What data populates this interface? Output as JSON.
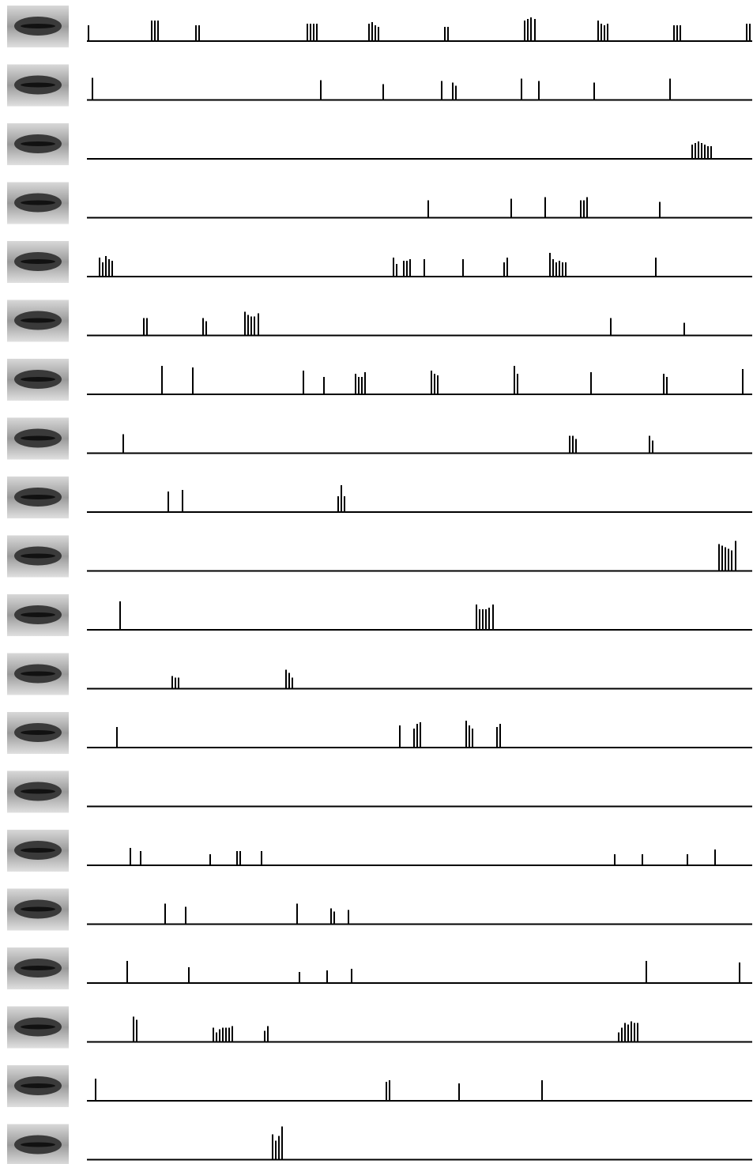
{
  "chart_data": [
    {
      "type": "spike",
      "xlim": [
        0,
        842
      ],
      "ylim": [
        0,
        45
      ],
      "color": "#000000",
      "x": [
        2,
        82,
        86,
        90,
        138,
        142,
        279,
        283,
        287,
        291,
        357,
        361,
        365,
        369,
        453,
        457,
        554,
        558,
        562,
        567,
        647,
        651,
        655,
        659,
        743,
        747,
        751,
        835,
        839
      ],
      "values": [
        20,
        26,
        26,
        26,
        20,
        20,
        22,
        22,
        22,
        22,
        22,
        24,
        20,
        18,
        18,
        18,
        26,
        28,
        30,
        28,
        26,
        22,
        20,
        22,
        20,
        20,
        20,
        22,
        22
      ]
    },
    {
      "type": "spike",
      "xlim": [
        0,
        842
      ],
      "ylim": [
        0,
        45
      ],
      "color": "#000000",
      "x": [
        7,
        296,
        375,
        449,
        463,
        467,
        550,
        572,
        642,
        738
      ],
      "values": [
        28,
        25,
        20,
        24,
        22,
        18,
        27,
        24,
        22,
        27
      ]
    },
    {
      "type": "spike",
      "xlim": [
        0,
        842
      ],
      "ylim": [
        0,
        45
      ],
      "color": "#000000",
      "x": [
        766,
        770,
        774,
        778,
        782,
        786,
        790
      ],
      "values": [
        18,
        20,
        22,
        20,
        18,
        16,
        16
      ]
    },
    {
      "type": "spike",
      "xlim": [
        0,
        842
      ],
      "ylim": [
        0,
        45
      ],
      "color": "#000000",
      "x": [
        432,
        537,
        580,
        625,
        629,
        633,
        725
      ],
      "values": [
        22,
        24,
        26,
        22,
        22,
        26,
        20
      ]
    },
    {
      "type": "spike",
      "xlim": [
        0,
        842
      ],
      "ylim": [
        0,
        45
      ],
      "color": "#000000",
      "x": [
        16,
        20,
        24,
        28,
        32,
        388,
        392,
        401,
        405,
        409,
        427,
        476,
        528,
        532,
        586,
        590,
        594,
        598,
        602,
        606,
        720
      ],
      "values": [
        24,
        18,
        26,
        22,
        20,
        24,
        16,
        20,
        20,
        22,
        22,
        22,
        18,
        24,
        30,
        22,
        18,
        20,
        18,
        18,
        24
      ]
    },
    {
      "type": "spike",
      "xlim": [
        0,
        842
      ],
      "ylim": [
        0,
        45
      ],
      "color": "#000000",
      "x": [
        72,
        76,
        147,
        151,
        200,
        204,
        208,
        212,
        217,
        663,
        756
      ],
      "values": [
        22,
        22,
        22,
        18,
        30,
        26,
        24,
        24,
        28,
        22,
        16
      ]
    },
    {
      "type": "spike",
      "xlim": [
        0,
        842
      ],
      "ylim": [
        0,
        45
      ],
      "color": "#000000",
      "x": [
        95,
        134,
        274,
        300,
        340,
        344,
        348,
        352,
        436,
        440,
        444,
        541,
        545,
        638,
        730,
        734,
        830
      ],
      "values": [
        36,
        34,
        30,
        22,
        26,
        22,
        22,
        28,
        30,
        26,
        24,
        36,
        26,
        28,
        26,
        22,
        32
      ]
    },
    {
      "type": "spike",
      "xlim": [
        0,
        842
      ],
      "ylim": [
        0,
        45
      ],
      "color": "#000000",
      "x": [
        46,
        611,
        615,
        619,
        712,
        716
      ],
      "values": [
        24,
        22,
        22,
        18,
        22,
        16
      ]
    },
    {
      "type": "spike",
      "xlim": [
        0,
        842
      ],
      "ylim": [
        0,
        45
      ],
      "color": "#000000",
      "x": [
        103,
        121,
        318,
        322,
        326
      ],
      "values": [
        26,
        28,
        20,
        34,
        20
      ]
    },
    {
      "type": "spike",
      "xlim": [
        0,
        842
      ],
      "ylim": [
        0,
        45
      ],
      "color": "#000000",
      "x": [
        800,
        804,
        808,
        812,
        816,
        821
      ],
      "values": [
        34,
        32,
        30,
        28,
        26,
        38
      ]
    },
    {
      "type": "spike",
      "xlim": [
        0,
        842
      ],
      "ylim": [
        0,
        45
      ],
      "color": "#000000",
      "x": [
        42,
        493,
        497,
        501,
        505,
        509,
        514
      ],
      "values": [
        36,
        32,
        26,
        26,
        26,
        28,
        32
      ]
    },
    {
      "type": "spike",
      "xlim": [
        0,
        842
      ],
      "ylim": [
        0,
        45
      ],
      "color": "#000000",
      "x": [
        108,
        112,
        116,
        252,
        256,
        260
      ],
      "values": [
        16,
        14,
        14,
        24,
        20,
        14
      ]
    },
    {
      "type": "spike",
      "xlim": [
        0,
        842
      ],
      "ylim": [
        0,
        45
      ],
      "color": "#000000",
      "x": [
        38,
        396,
        414,
        418,
        422,
        480,
        484,
        488,
        519,
        523
      ],
      "values": [
        26,
        28,
        24,
        30,
        32,
        34,
        28,
        24,
        26,
        30
      ]
    },
    {
      "type": "spike",
      "xlim": [
        0,
        842
      ],
      "ylim": [
        0,
        45
      ],
      "color": "#000000",
      "x": [],
      "values": []
    },
    {
      "type": "spike",
      "xlim": [
        0,
        842
      ],
      "ylim": [
        0,
        45
      ],
      "color": "#000000",
      "x": [
        55,
        68,
        156,
        190,
        194,
        221,
        668,
        703,
        760,
        795
      ],
      "values": [
        22,
        18,
        14,
        18,
        18,
        18,
        14,
        14,
        14,
        20
      ]
    },
    {
      "type": "spike",
      "xlim": [
        0,
        842
      ],
      "ylim": [
        0,
        45
      ],
      "color": "#000000",
      "x": [
        99,
        125,
        266,
        309,
        313,
        331
      ],
      "values": [
        26,
        22,
        26,
        20,
        16,
        18
      ]
    },
    {
      "type": "spike",
      "xlim": [
        0,
        842
      ],
      "ylim": [
        0,
        45
      ],
      "color": "#000000",
      "x": [
        51,
        129,
        269,
        304,
        335,
        708,
        826
      ],
      "values": [
        28,
        20,
        14,
        16,
        18,
        28,
        26
      ]
    },
    {
      "type": "spike",
      "xlim": [
        0,
        842
      ],
      "ylim": [
        0,
        45
      ],
      "color": "#000000",
      "x": [
        59,
        63,
        160,
        164,
        168,
        172,
        176,
        180,
        184,
        225,
        229,
        673,
        677,
        681,
        685,
        689,
        693,
        697
      ],
      "values": [
        32,
        28,
        18,
        12,
        16,
        18,
        18,
        18,
        20,
        14,
        20,
        12,
        18,
        24,
        22,
        26,
        24,
        24
      ]
    },
    {
      "type": "spike",
      "xlim": [
        0,
        842
      ],
      "ylim": [
        0,
        45
      ],
      "color": "#000000",
      "x": [
        11,
        379,
        383,
        471,
        576
      ],
      "values": [
        28,
        24,
        26,
        22,
        26
      ]
    },
    {
      "type": "spike",
      "xlim": [
        0,
        842
      ],
      "ylim": [
        0,
        45
      ],
      "color": "#000000",
      "x": [
        235,
        239,
        243,
        247
      ],
      "values": [
        32,
        24,
        30,
        42
      ]
    }
  ]
}
